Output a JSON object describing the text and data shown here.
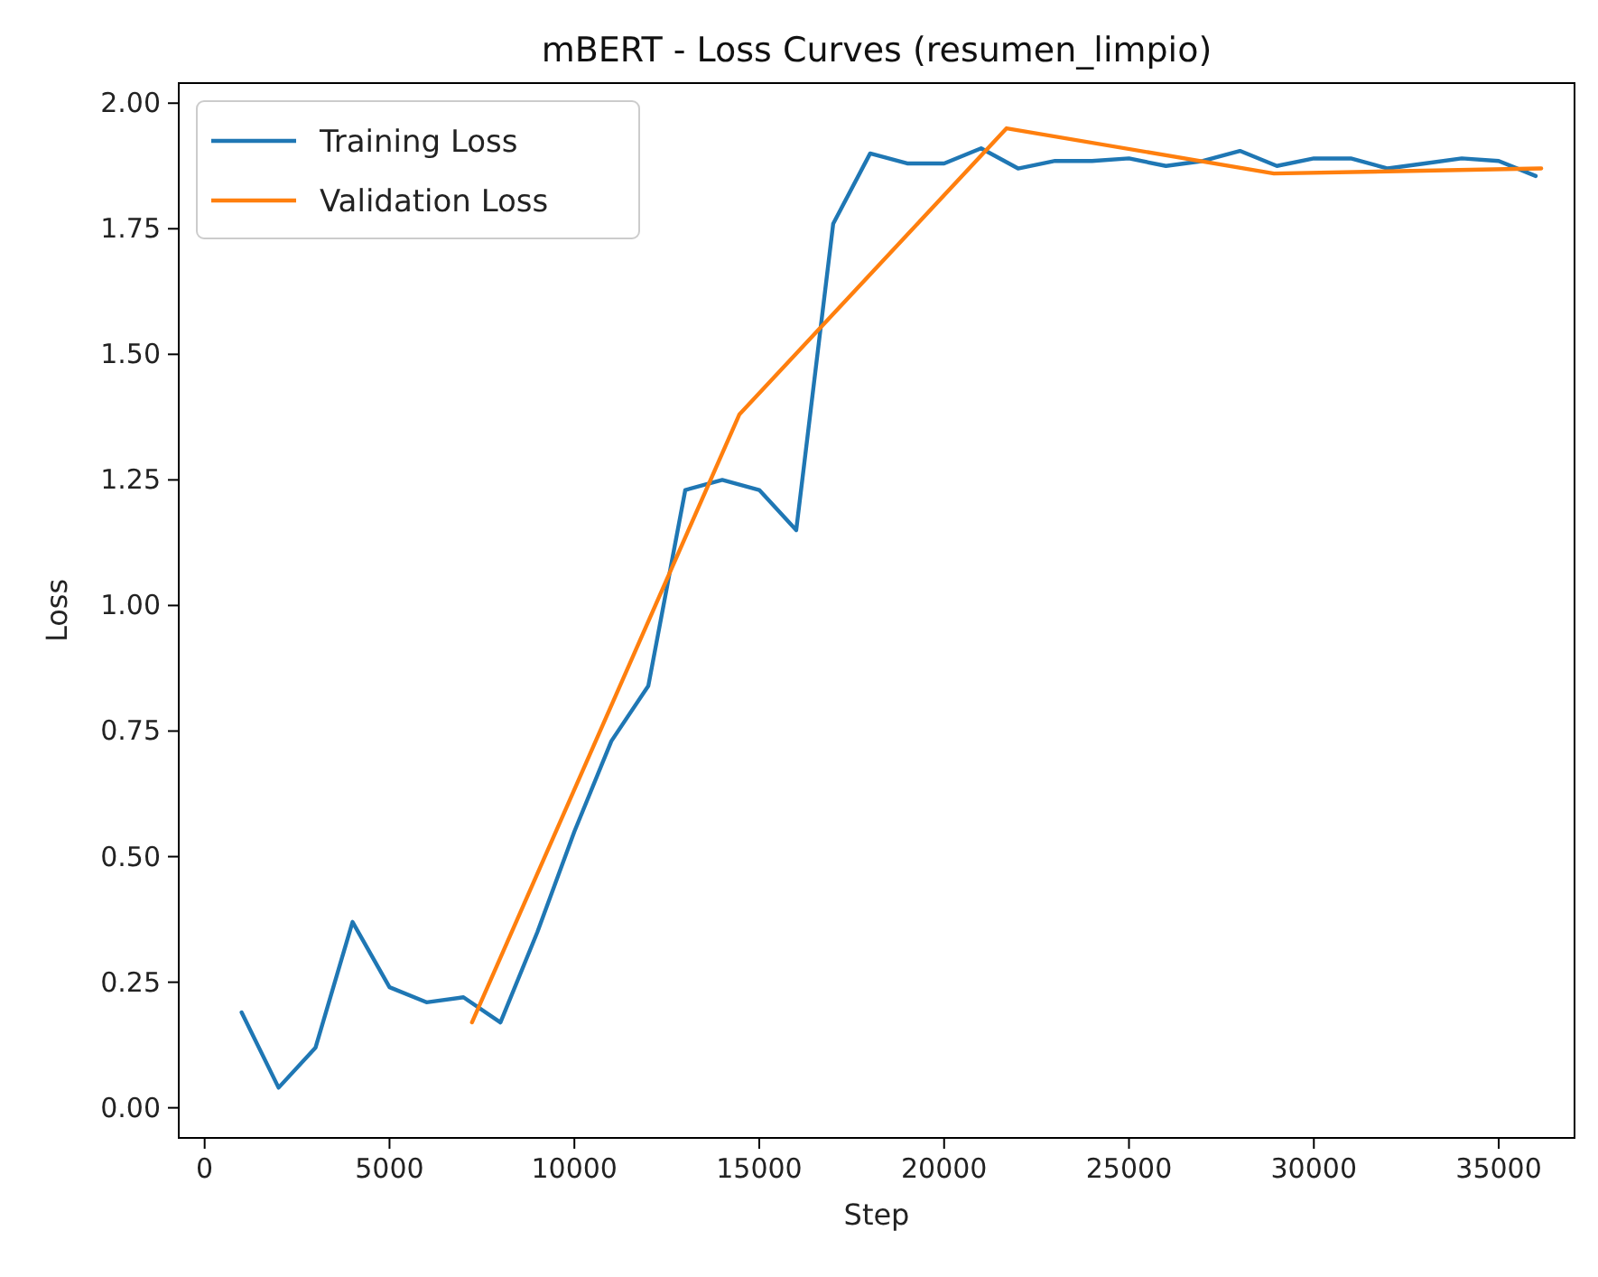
{
  "chart_data": {
    "type": "line",
    "title": "mBERT - Loss Curves (resumen_limpio)",
    "xlabel": "Step",
    "ylabel": "Loss",
    "legend": "top left",
    "grid": false,
    "xlim": [
      -700,
      37050
    ],
    "ylim": [
      -0.06,
      2.04
    ],
    "xticks": [
      0,
      5000,
      10000,
      15000,
      20000,
      25000,
      30000,
      35000
    ],
    "yticks": [
      {
        "value": 0,
        "label": "0.00"
      },
      {
        "value": 0.25,
        "label": "0.25"
      },
      {
        "value": 0.5,
        "label": "0.50"
      },
      {
        "value": 0.75,
        "label": "0.75"
      },
      {
        "value": 1,
        "label": "1.00"
      },
      {
        "value": 1.25,
        "label": "1.25"
      },
      {
        "value": 1.5,
        "label": "1.50"
      },
      {
        "value": 1.75,
        "label": "1.75"
      },
      {
        "value": 2,
        "label": "2.00"
      }
    ],
    "series": [
      {
        "name": "Training Loss",
        "color": "#1f77b4",
        "x": [
          1000,
          2000,
          3000,
          4000,
          5000,
          6000,
          7000,
          8000,
          9000,
          10000,
          11000,
          12000,
          13000,
          14000,
          15000,
          16000,
          17000,
          18000,
          19000,
          20000,
          21000,
          22000,
          23000,
          24000,
          25000,
          26000,
          27000,
          28000,
          29000,
          30000,
          31000,
          32000,
          33000,
          34000,
          35000,
          36000
        ],
        "values": [
          0.19,
          0.04,
          0.12,
          0.37,
          0.24,
          0.21,
          0.22,
          0.17,
          0.35,
          0.55,
          0.73,
          0.84,
          1.23,
          1.25,
          1.23,
          1.15,
          1.76,
          1.9,
          1.88,
          1.88,
          1.91,
          1.87,
          1.885,
          1.885,
          1.89,
          1.875,
          1.885,
          1.905,
          1.875,
          1.89,
          1.89,
          1.87,
          1.88,
          1.89,
          1.885,
          1.855
        ]
      },
      {
        "name": "Validation Loss",
        "color": "#ff7f0e",
        "x": [
          7230,
          14460,
          21690,
          28920,
          36150
        ],
        "values": [
          0.17,
          1.38,
          1.95,
          1.86,
          1.87
        ]
      }
    ]
  }
}
